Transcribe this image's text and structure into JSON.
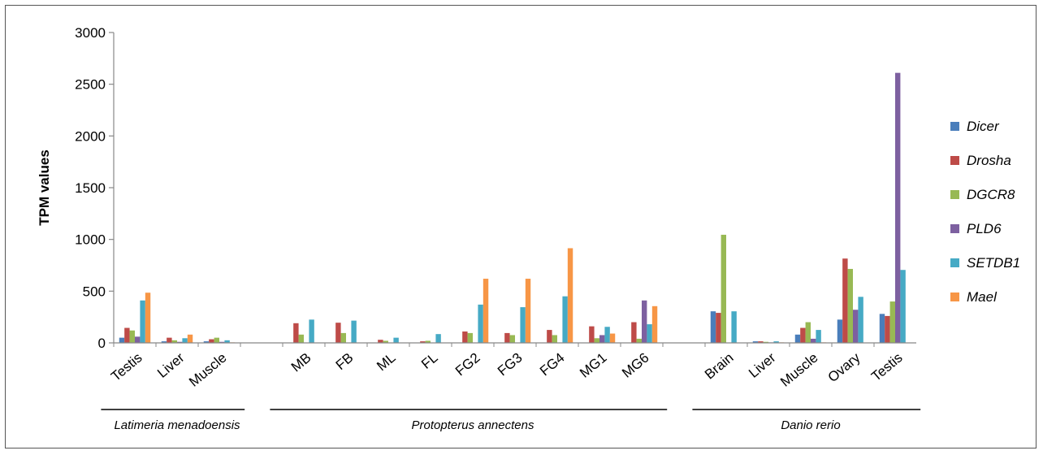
{
  "chart_data": {
    "type": "bar",
    "ylabel": "TPM values",
    "ylim": [
      0,
      3000
    ],
    "yticks": [
      0,
      500,
      1000,
      1500,
      2000,
      2500,
      3000
    ],
    "grid": false,
    "legend_position": "right",
    "groups": [
      {
        "name": "Latimeria menadoensis",
        "categories": [
          "Testis",
          "Liver",
          "Muscle"
        ]
      },
      {
        "name": "Protopterus annectens",
        "categories": [
          "MB",
          "FB",
          "ML",
          "FL",
          "FG2",
          "FG3",
          "FG4",
          "MG1",
          "MG6"
        ]
      },
      {
        "name": "Danio rerio",
        "categories": [
          "Brain",
          "Liver",
          "Muscle",
          "Ovary",
          "Testis"
        ]
      }
    ],
    "series": [
      {
        "name": "Dicer",
        "color": "#4a7ebb",
        "values": [
          50,
          15,
          15,
          0,
          0,
          0,
          0,
          0,
          0,
          0,
          0,
          0,
          305,
          15,
          80,
          225,
          280
        ]
      },
      {
        "name": "Drosha",
        "color": "#be4b48",
        "values": [
          145,
          50,
          35,
          190,
          195,
          30,
          15,
          110,
          95,
          125,
          160,
          200,
          290,
          15,
          145,
          815,
          260
        ]
      },
      {
        "name": "DGCR8",
        "color": "#98b954",
        "values": [
          120,
          25,
          50,
          80,
          95,
          20,
          20,
          95,
          75,
          75,
          45,
          40,
          1045,
          10,
          200,
          715,
          400
        ]
      },
      {
        "name": "PLD6",
        "color": "#7d60a0",
        "values": [
          60,
          10,
          10,
          0,
          0,
          0,
          0,
          0,
          0,
          0,
          75,
          410,
          0,
          5,
          40,
          320,
          2610
        ]
      },
      {
        "name": "SETDB1",
        "color": "#46aac5",
        "values": [
          410,
          45,
          25,
          225,
          215,
          50,
          85,
          370,
          345,
          450,
          155,
          180,
          305,
          15,
          125,
          445,
          705
        ]
      },
      {
        "name": "Mael",
        "color": "#f79646",
        "values": [
          485,
          80,
          5,
          0,
          0,
          0,
          0,
          620,
          620,
          915,
          90,
          355,
          0,
          5,
          5,
          0,
          0
        ]
      }
    ]
  }
}
